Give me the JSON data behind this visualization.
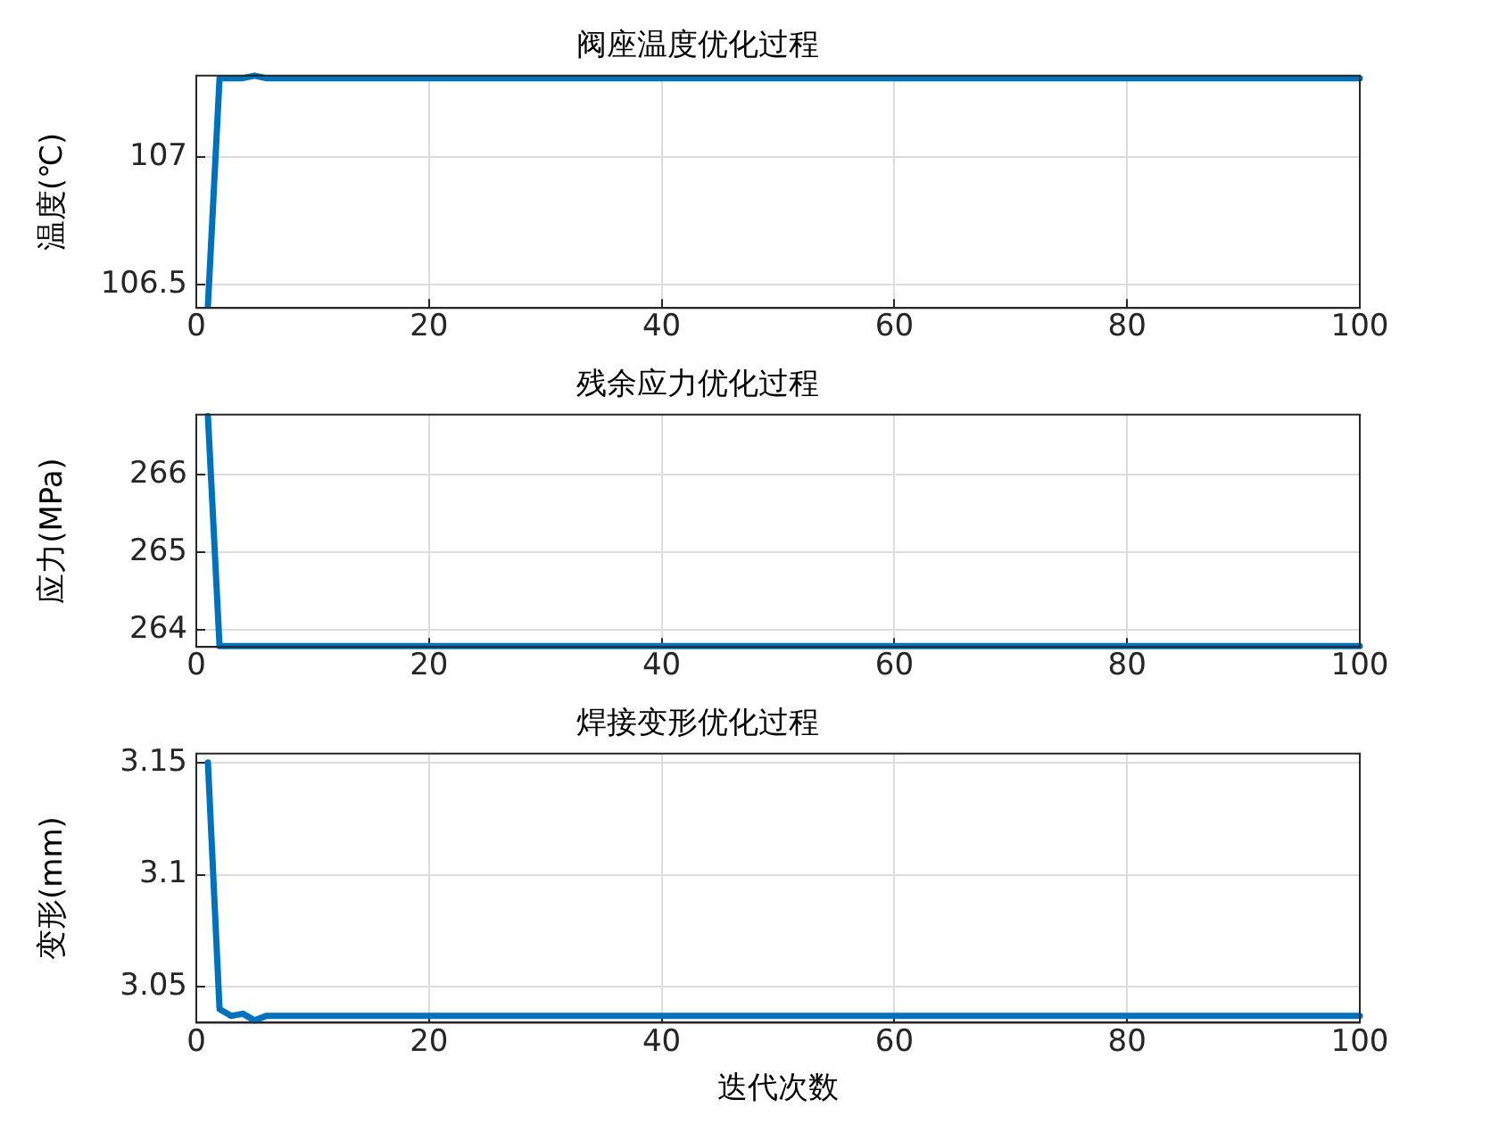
{
  "chart_data": [
    {
      "type": "line",
      "title": "阀座温度优化过程",
      "ylabel": "温度(℃)",
      "x": [
        1,
        2,
        3,
        4,
        5,
        6,
        100
      ],
      "series": [
        {
          "color": "#0072bd",
          "values": [
            106.42,
            107.31,
            107.31,
            107.31,
            107.32,
            107.31,
            107.31
          ]
        }
      ],
      "xlim": [
        0,
        100
      ],
      "xticks": [
        0,
        20,
        40,
        60,
        80,
        100
      ],
      "ylim": [
        106.41,
        107.32
      ],
      "yticks": [
        106.5,
        107
      ],
      "grid": true,
      "legend": false,
      "marker": "none",
      "line_style": "solid"
    },
    {
      "type": "line",
      "title": "残余应力优化过程",
      "ylabel": "应力(MPa)",
      "x": [
        1,
        2,
        3,
        4,
        5,
        6,
        100
      ],
      "series": [
        {
          "color": "#0072bd",
          "values": [
            266.75,
            263.79,
            263.79,
            263.79,
            263.79,
            263.79,
            263.79
          ]
        }
      ],
      "xlim": [
        0,
        100
      ],
      "xticks": [
        0,
        20,
        40,
        60,
        80,
        100
      ],
      "ylim": [
        263.78,
        266.77
      ],
      "yticks": [
        264,
        265,
        266
      ],
      "grid": true,
      "legend": false,
      "marker": "none",
      "line_style": "solid"
    },
    {
      "type": "line",
      "title": "焊接变形优化过程",
      "ylabel": "变形(mm)",
      "xlabel": "迭代次数",
      "x": [
        1,
        2,
        3,
        4,
        5,
        6,
        100
      ],
      "series": [
        {
          "color": "#0072bd",
          "values": [
            3.15,
            3.04,
            3.037,
            3.038,
            3.035,
            3.037,
            3.037
          ]
        }
      ],
      "xlim": [
        0,
        100
      ],
      "xticks": [
        0,
        20,
        40,
        60,
        80,
        100
      ],
      "ylim": [
        3.034,
        3.154
      ],
      "yticks": [
        3.05,
        3.1,
        3.15
      ],
      "grid": true,
      "legend": false,
      "marker": "none",
      "line_style": "solid"
    }
  ]
}
